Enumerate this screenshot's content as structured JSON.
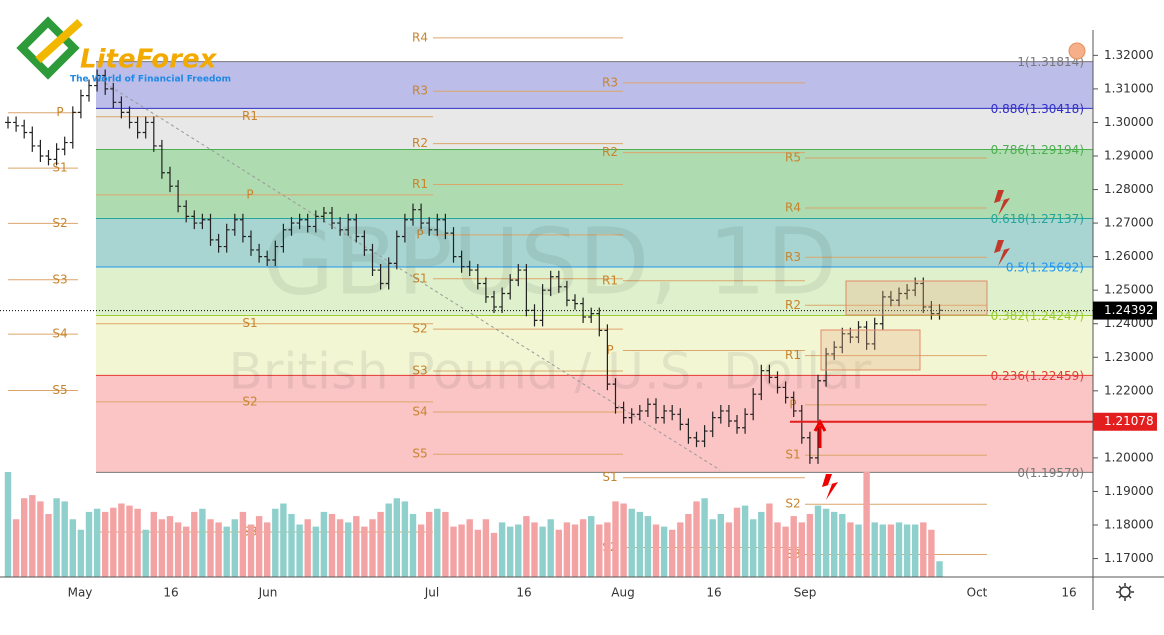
{
  "header": {
    "logo": "LiteForex",
    "tagline": "The World of Financial Freedom"
  },
  "chart_data": {
    "type": "ohlc",
    "watermark": "GBPUSD, 1D",
    "subtitle": "British Pound / U.S. Dollar",
    "x_labels": [
      "May",
      "16",
      "Jun",
      "Jul",
      "16",
      "Aug",
      "16",
      "Sep",
      "Oct",
      "16"
    ],
    "ylim": [
      1.1645,
      1.3365
    ],
    "yticks": [
      {
        "value": 1.17,
        "label": "1.17000"
      },
      {
        "value": 1.18,
        "label": "1.18000"
      },
      {
        "value": 1.19,
        "label": "1.19000"
      },
      {
        "value": 1.2,
        "label": "1.20000"
      },
      {
        "value": 1.21,
        "label": "1.21000"
      },
      {
        "value": 1.22,
        "label": "1.22000"
      },
      {
        "value": 1.23,
        "label": "1.23000"
      },
      {
        "value": 1.24,
        "label": "1.24000"
      },
      {
        "value": 1.25,
        "label": "1.25000"
      },
      {
        "value": 1.26,
        "label": "1.26000"
      },
      {
        "value": 1.27,
        "label": "1.27000"
      },
      {
        "value": 1.28,
        "label": "1.28000"
      },
      {
        "value": 1.29,
        "label": "1.29000"
      },
      {
        "value": 1.3,
        "label": "1.30000"
      },
      {
        "value": 1.31,
        "label": "1.31000"
      },
      {
        "value": 1.32,
        "label": "1.32000"
      }
    ],
    "close": [
      1.3,
      1.299,
      1.297,
      1.293,
      1.29,
      1.289,
      1.292,
      1.294,
      1.303,
      1.308,
      1.311,
      1.314,
      1.31,
      1.306,
      1.303,
      1.3,
      1.297,
      1.3,
      1.293,
      1.285,
      1.281,
      1.275,
      1.272,
      1.27,
      1.271,
      1.265,
      1.263,
      1.268,
      1.271,
      1.266,
      1.262,
      1.26,
      1.259,
      1.263,
      1.268,
      1.27,
      1.271,
      1.269,
      1.272,
      1.273,
      1.27,
      1.268,
      1.271,
      1.266,
      1.262,
      1.256,
      1.252,
      1.258,
      1.266,
      1.271,
      1.274,
      1.27,
      1.268,
      1.271,
      1.267,
      1.26,
      1.257,
      1.256,
      1.252,
      1.248,
      1.245,
      1.249,
      1.253,
      1.256,
      1.244,
      1.241,
      1.25,
      1.254,
      1.251,
      1.247,
      1.246,
      1.242,
      1.243,
      1.238,
      1.222,
      1.215,
      1.212,
      1.213,
      1.214,
      1.216,
      1.212,
      1.214,
      1.213,
      1.21,
      1.206,
      1.205,
      1.208,
      1.212,
      1.214,
      1.211,
      1.209,
      1.213,
      1.219,
      1.226,
      1.224,
      1.221,
      1.218,
      1.214,
      1.206,
      1.2,
      1.223,
      1.231,
      1.233,
      1.237,
      1.236,
      1.239,
      1.234,
      1.24,
      1.248,
      1.247,
      1.249,
      1.25,
      1.252,
      1.245,
      1.243,
      1.244
    ],
    "volume": [
      100,
      55,
      75,
      78,
      72,
      60,
      75,
      72,
      55,
      45,
      62,
      65,
      62,
      66,
      70,
      68,
      65,
      45,
      62,
      55,
      58,
      52,
      48,
      62,
      65,
      55,
      52,
      48,
      55,
      62,
      50,
      58,
      52,
      65,
      70,
      60,
      50,
      55,
      48,
      62,
      60,
      55,
      52,
      58,
      48,
      55,
      62,
      70,
      75,
      72,
      60,
      50,
      62,
      65,
      62,
      48,
      50,
      55,
      45,
      55,
      42,
      52,
      48,
      50,
      58,
      52,
      48,
      55,
      45,
      52,
      50,
      55,
      58,
      50,
      52,
      72,
      70,
      65,
      62,
      58,
      50,
      48,
      45,
      52,
      60,
      72,
      75,
      55,
      60,
      52,
      66,
      68,
      55,
      62,
      70,
      52,
      48,
      58,
      52,
      60,
      68,
      65,
      62,
      60,
      52,
      50,
      100,
      52,
      50,
      50,
      52,
      50,
      50,
      52,
      45,
      15
    ],
    "fib_levels": [
      {
        "label": "1(1.31814)",
        "price": 1.31814,
        "color": "#777777",
        "fill": "rgba(90,90,200,0.4)"
      },
      {
        "label": "0.886(1.30418)",
        "price": 1.30418,
        "color": "#2f2fc8",
        "fill": "rgba(190,190,190,0.35)"
      },
      {
        "label": "0.786(1.29194)",
        "price": 1.29194,
        "color": "#4caf50",
        "fill": "rgba(76,175,80,0.45)"
      },
      {
        "label": "0.618(1.27137)",
        "price": 1.27137,
        "color": "#26a69a",
        "fill": "rgba(38,150,140,0.4)"
      },
      {
        "label": "0.5(1.25692)",
        "price": 1.25692,
        "color": "#2196f3",
        "fill": "rgba(160,215,110,0.35)"
      },
      {
        "label": "0.382(1.24247)",
        "price": 1.24247,
        "color": "#9acd32",
        "fill": "rgba(220,230,130,0.35)"
      },
      {
        "label": "0.236(1.22459)",
        "price": 1.22459,
        "color": "#e53935",
        "fill": "rgba(244,90,90,0.35)"
      },
      {
        "label": "0(1.19570)",
        "price": 1.1957,
        "color": "#777777"
      }
    ],
    "pivot_periods": [
      {
        "levels": [
          {
            "label": "P",
            "price": 1.3029
          },
          {
            "label": "S1",
            "price": 1.2864
          },
          {
            "label": "S2",
            "price": 1.2699
          },
          {
            "label": "S3",
            "price": 1.2531
          },
          {
            "label": "S4",
            "price": 1.2369
          },
          {
            "label": "S5",
            "price": 1.2201
          }
        ]
      },
      {
        "levels": [
          {
            "label": "R1",
            "price": 1.3017
          },
          {
            "label": "P",
            "price": 1.2784
          },
          {
            "label": "S1",
            "price": 1.24
          },
          {
            "label": "S2",
            "price": 1.2167
          },
          {
            "label": "S3",
            "price": 1.1779
          }
        ]
      },
      {
        "levels": [
          {
            "label": "R4",
            "price": 1.3252
          },
          {
            "label": "R3",
            "price": 1.3093
          },
          {
            "label": "R2",
            "price": 1.2937
          },
          {
            "label": "R1",
            "price": 1.2815
          },
          {
            "label": "P",
            "price": 1.2665
          },
          {
            "label": "S1",
            "price": 1.2534
          },
          {
            "label": "S2",
            "price": 1.2384
          },
          {
            "label": "S3",
            "price": 1.2259
          },
          {
            "label": "S4",
            "price": 1.2137
          },
          {
            "label": "S5",
            "price": 1.2011
          }
        ]
      },
      {
        "levels": [
          {
            "label": "R3",
            "price": 1.3118
          },
          {
            "label": "R2",
            "price": 1.291
          },
          {
            "label": "R1",
            "price": 1.2528
          },
          {
            "label": "P",
            "price": 1.232
          },
          {
            "label": "S1",
            "price": 1.1941
          },
          {
            "label": "S2",
            "price": 1.1733
          }
        ]
      },
      {
        "levels": [
          {
            "label": "R5",
            "price": 1.2894
          },
          {
            "label": "R4",
            "price": 1.2745
          },
          {
            "label": "R3",
            "price": 1.2598
          },
          {
            "label": "R2",
            "price": 1.2455
          },
          {
            "label": "R1",
            "price": 1.2305
          },
          {
            "label": "P",
            "price": 1.2158
          },
          {
            "label": "S1",
            "price": 1.2008
          },
          {
            "label": "S2",
            "price": 1.1862
          },
          {
            "label": "S3",
            "price": 1.1712
          }
        ]
      }
    ],
    "price_tags": [
      {
        "value": 1.24392,
        "label": "1.24392",
        "color": "#000000"
      },
      {
        "value": 1.21078,
        "label": "1.21078",
        "color": "#e31e1e"
      }
    ]
  }
}
